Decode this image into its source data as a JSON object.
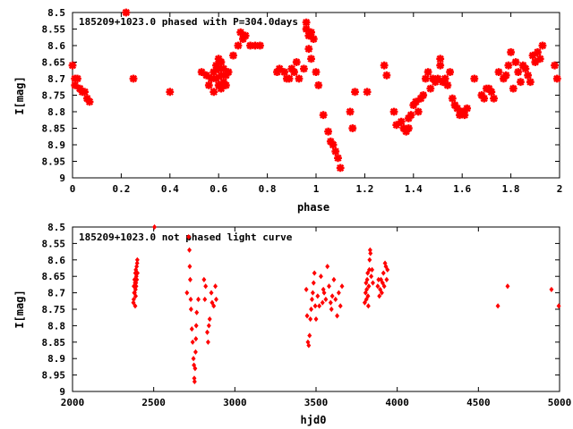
{
  "chart_data": [
    {
      "type": "scatter",
      "title": "185209+1023.0 phased with P=304.0days",
      "xlabel": "phase",
      "ylabel": "I[mag]",
      "xlim": [
        0,
        2
      ],
      "ylim": [
        8.5,
        9
      ],
      "y_inverted": true,
      "xticks": [
        "0",
        "0.2",
        "0.4",
        "0.6",
        "0.8",
        "1",
        "1.2",
        "1.4",
        "1.6",
        "1.8",
        "2"
      ],
      "yticks": [
        "8.5",
        "8.55",
        "8.6",
        "8.65",
        "8.7",
        "8.75",
        "8.8",
        "8.85",
        "8.9",
        "8.95",
        "9"
      ],
      "grid": false,
      "marker": "star",
      "color": "#ff0000",
      "series": [
        {
          "x": [
            0.0,
            0.01,
            0.01,
            0.02,
            0.03,
            0.04,
            0.05,
            0.06,
            0.07,
            0.22,
            0.25,
            0.4,
            0.53,
            0.55,
            0.56,
            0.57,
            0.58,
            0.58,
            0.59,
            0.59,
            0.6,
            0.6,
            0.6,
            0.61,
            0.61,
            0.61,
            0.62,
            0.62,
            0.63,
            0.63,
            0.64,
            0.66,
            0.68,
            0.69,
            0.7,
            0.71,
            0.73,
            0.75,
            0.77,
            0.84,
            0.85,
            0.87,
            0.88,
            0.89,
            0.9,
            0.91,
            0.92,
            0.93,
            0.95,
            0.96,
            0.96,
            0.97,
            0.97,
            0.98,
            0.98,
            0.99,
            1.0,
            1.01,
            1.03,
            1.05,
            1.06,
            1.07,
            1.08,
            1.09,
            1.1,
            1.14,
            1.15,
            1.16,
            1.21,
            1.28,
            1.29,
            1.32,
            1.33,
            1.35,
            1.36,
            1.37,
            1.38,
            1.38,
            1.39,
            1.4,
            1.41,
            1.42,
            1.43,
            1.44,
            1.45,
            1.46,
            1.47,
            1.48,
            1.49,
            1.5,
            1.51,
            1.51,
            1.52,
            1.53,
            1.54,
            1.55,
            1.56,
            1.57,
            1.58,
            1.59,
            1.6,
            1.61,
            1.62,
            1.65,
            1.68,
            1.69,
            1.7,
            1.71,
            1.72,
            1.73,
            1.75,
            1.77,
            1.78,
            1.79,
            1.8,
            1.81,
            1.82,
            1.83,
            1.84,
            1.85,
            1.86,
            1.87,
            1.88,
            1.89,
            1.9,
            1.91,
            1.92,
            1.93,
            1.98,
            1.99
          ],
          "y": [
            8.66,
            8.7,
            8.72,
            8.7,
            8.73,
            8.74,
            8.74,
            8.76,
            8.77,
            8.5,
            8.7,
            8.74,
            8.68,
            8.69,
            8.72,
            8.7,
            8.68,
            8.74,
            8.66,
            8.7,
            8.64,
            8.67,
            8.72,
            8.65,
            8.69,
            8.73,
            8.67,
            8.71,
            8.69,
            8.72,
            8.68,
            8.63,
            8.6,
            8.56,
            8.58,
            8.57,
            8.6,
            8.6,
            8.6,
            8.68,
            8.67,
            8.68,
            8.7,
            8.7,
            8.67,
            8.68,
            8.65,
            8.7,
            8.67,
            8.55,
            8.53,
            8.57,
            8.61,
            8.56,
            8.64,
            8.58,
            8.68,
            8.72,
            8.81,
            8.86,
            8.89,
            8.9,
            8.92,
            8.94,
            8.97,
            8.8,
            8.85,
            8.74,
            8.74,
            8.66,
            8.69,
            8.8,
            8.84,
            8.83,
            8.85,
            8.86,
            8.85,
            8.82,
            8.81,
            8.78,
            8.77,
            8.8,
            8.76,
            8.75,
            8.7,
            8.68,
            8.73,
            8.7,
            8.71,
            8.7,
            8.64,
            8.66,
            8.71,
            8.7,
            8.72,
            8.68,
            8.76,
            8.78,
            8.79,
            8.81,
            8.8,
            8.81,
            8.79,
            8.7,
            8.75,
            8.76,
            8.73,
            8.73,
            8.74,
            8.76,
            8.68,
            8.7,
            8.69,
            8.66,
            8.62,
            8.73,
            8.65,
            8.68,
            8.71,
            8.66,
            8.67,
            8.69,
            8.71,
            8.63,
            8.65,
            8.62,
            8.64,
            8.6,
            8.66,
            8.7
          ]
        }
      ]
    },
    {
      "type": "scatter",
      "title": "185209+1023.0 not phased light curve",
      "xlabel": "hjd0",
      "ylabel": "I[mag]",
      "xlim": [
        2000,
        5000
      ],
      "ylim": [
        8.5,
        9
      ],
      "y_inverted": true,
      "xticks": [
        "2000",
        "2500",
        "3000",
        "3500",
        "4000",
        "4500",
        "5000"
      ],
      "yticks": [
        "8.5",
        "8.55",
        "8.6",
        "8.65",
        "8.7",
        "8.75",
        "8.8",
        "8.85",
        "8.9",
        "8.95",
        "9"
      ],
      "grid": false,
      "marker": "diamond",
      "color": "#ff0000",
      "series": [
        {
          "x": [
            2375,
            2377,
            2378,
            2380,
            2382,
            2383,
            2385,
            2386,
            2387,
            2388,
            2389,
            2390,
            2391,
            2392,
            2393,
            2395,
            2396,
            2398,
            2399,
            2400,
            2505,
            2705,
            2715,
            2720,
            2722,
            2725,
            2728,
            2730,
            2735,
            2740,
            2745,
            2748,
            2750,
            2752,
            2755,
            2758,
            2760,
            2762,
            2765,
            2775,
            2810,
            2815,
            2820,
            2830,
            2835,
            2840,
            2845,
            2855,
            2860,
            2870,
            2880,
            2885,
            3440,
            3445,
            3450,
            3455,
            3460,
            3465,
            3470,
            3475,
            3480,
            3485,
            3490,
            3495,
            3500,
            3510,
            3520,
            3530,
            3540,
            3545,
            3550,
            3560,
            3570,
            3580,
            3590,
            3595,
            3600,
            3610,
            3620,
            3630,
            3640,
            3650,
            3660,
            3800,
            3805,
            3808,
            3810,
            3812,
            3815,
            3818,
            3820,
            3822,
            3825,
            3828,
            3830,
            3833,
            3835,
            3840,
            3845,
            3850,
            3880,
            3885,
            3890,
            3895,
            3900,
            3905,
            3910,
            3915,
            3920,
            3925,
            3930,
            3935,
            3940,
            4620,
            4680,
            4950,
            4995
          ],
          "y": [
            8.73,
            8.72,
            8.68,
            8.7,
            8.66,
            8.7,
            8.67,
            8.74,
            8.64,
            8.69,
            8.71,
            8.63,
            8.67,
            8.68,
            8.65,
            8.62,
            8.66,
            8.61,
            8.6,
            8.64,
            8.5,
            8.7,
            8.53,
            8.57,
            8.62,
            8.66,
            8.72,
            8.75,
            8.81,
            8.85,
            8.9,
            8.92,
            8.96,
            8.97,
            8.93,
            8.88,
            8.84,
            8.8,
            8.76,
            8.72,
            8.66,
            8.72,
            8.68,
            8.82,
            8.85,
            8.8,
            8.78,
            8.7,
            8.73,
            8.74,
            8.68,
            8.72,
            8.69,
            8.77,
            8.85,
            8.86,
            8.83,
            8.78,
            8.75,
            8.72,
            8.7,
            8.67,
            8.64,
            8.74,
            8.78,
            8.71,
            8.74,
            8.65,
            8.73,
            8.69,
            8.7,
            8.72,
            8.62,
            8.68,
            8.73,
            8.75,
            8.71,
            8.66,
            8.72,
            8.77,
            8.7,
            8.74,
            8.68,
            8.73,
            8.7,
            8.67,
            8.72,
            8.69,
            8.66,
            8.64,
            8.71,
            8.74,
            8.68,
            8.63,
            8.6,
            8.57,
            8.58,
            8.65,
            8.63,
            8.67,
            8.68,
            8.66,
            8.71,
            8.69,
            8.66,
            8.7,
            8.67,
            8.64,
            8.68,
            8.61,
            8.62,
            8.66,
            8.63,
            8.74,
            8.68,
            8.69,
            8.74
          ]
        }
      ]
    }
  ]
}
